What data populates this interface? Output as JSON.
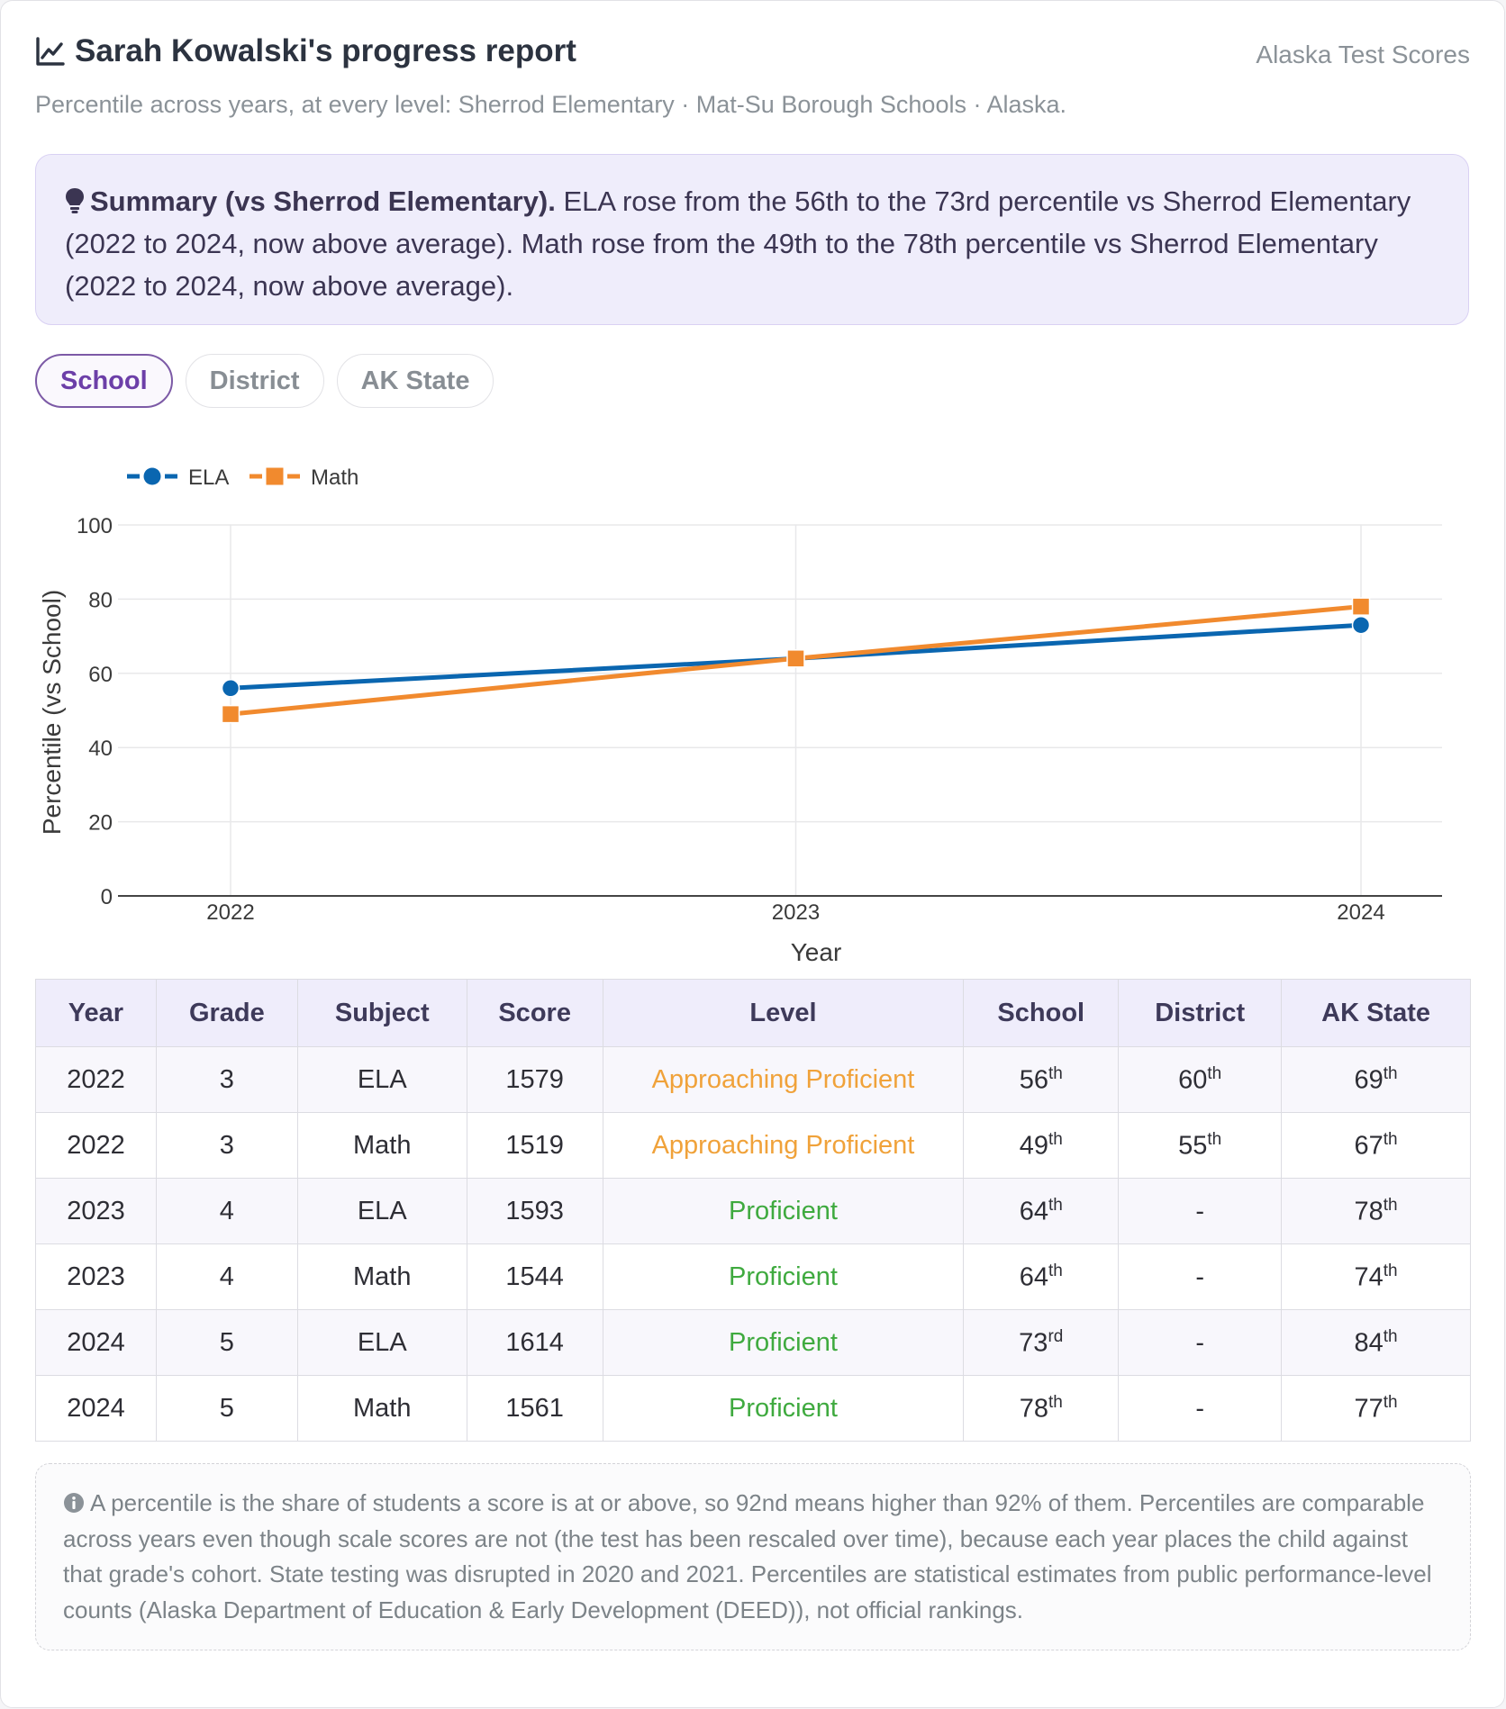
{
  "header": {
    "title": "Sarah Kowalski's progress report",
    "brand": "Alaska Test Scores",
    "subtitle": "Percentile across years, at every level: Sherrod Elementary · Mat-Su Borough Schools · Alaska."
  },
  "summary": {
    "lead": "Summary (vs Sherrod Elementary).",
    "text": " ELA rose from the 56th to the 73rd percentile vs Sherrod Elementary (2022 to 2024, now above average). Math rose from the 49th to the 78th percentile vs Sherrod Elementary (2022 to 2024, now above average)."
  },
  "tabs": [
    {
      "label": "School",
      "active": true
    },
    {
      "label": "District",
      "active": false
    },
    {
      "label": "AK State",
      "active": false
    }
  ],
  "colors": {
    "ela": "#0a66b0",
    "math": "#f18a2e",
    "approaching": "#f0a23a",
    "proficient": "#3faa3f"
  },
  "chart_data": {
    "type": "line",
    "x": [
      2022,
      2023,
      2024
    ],
    "x_tick_labels": [
      "2022",
      "2023",
      "2024"
    ],
    "series": [
      {
        "name": "ELA",
        "values": [
          56,
          64,
          73
        ],
        "marker": "circle"
      },
      {
        "name": "Math",
        "values": [
          49,
          64,
          78
        ],
        "marker": "square"
      }
    ],
    "xlabel": "Year",
    "ylabel": "Percentile (vs School)",
    "ylim": [
      0,
      100
    ],
    "y_ticks": [
      0,
      20,
      40,
      60,
      80,
      100
    ],
    "grid": true,
    "legend_position": "top-left"
  },
  "table": {
    "headers": [
      "Year",
      "Grade",
      "Subject",
      "Score",
      "Level",
      "School",
      "District",
      "AK State"
    ],
    "rows": [
      {
        "year": "2022",
        "grade": "3",
        "subject": "ELA",
        "score": "1579",
        "level": "Approaching Proficient",
        "level_kind": "approaching",
        "school": [
          "56",
          "th"
        ],
        "district": [
          "60",
          "th"
        ],
        "state": [
          "69",
          "th"
        ]
      },
      {
        "year": "2022",
        "grade": "3",
        "subject": "Math",
        "score": "1519",
        "level": "Approaching Proficient",
        "level_kind": "approaching",
        "school": [
          "49",
          "th"
        ],
        "district": [
          "55",
          "th"
        ],
        "state": [
          "67",
          "th"
        ]
      },
      {
        "year": "2023",
        "grade": "4",
        "subject": "ELA",
        "score": "1593",
        "level": "Proficient",
        "level_kind": "proficient",
        "school": [
          "64",
          "th"
        ],
        "district": [
          "-",
          ""
        ],
        "state": [
          "78",
          "th"
        ]
      },
      {
        "year": "2023",
        "grade": "4",
        "subject": "Math",
        "score": "1544",
        "level": "Proficient",
        "level_kind": "proficient",
        "school": [
          "64",
          "th"
        ],
        "district": [
          "-",
          ""
        ],
        "state": [
          "74",
          "th"
        ]
      },
      {
        "year": "2024",
        "grade": "5",
        "subject": "ELA",
        "score": "1614",
        "level": "Proficient",
        "level_kind": "proficient",
        "school": [
          "73",
          "rd"
        ],
        "district": [
          "-",
          ""
        ],
        "state": [
          "84",
          "th"
        ]
      },
      {
        "year": "2024",
        "grade": "5",
        "subject": "Math",
        "score": "1561",
        "level": "Proficient",
        "level_kind": "proficient",
        "school": [
          "78",
          "th"
        ],
        "district": [
          "-",
          ""
        ],
        "state": [
          "77",
          "th"
        ]
      }
    ]
  },
  "note": "A percentile is the share of students a score is at or above, so 92nd means higher than 92% of them. Percentiles are comparable across years even though scale scores are not (the test has been rescaled over time), because each year places the child against that grade's cohort. State testing was disrupted in 2020 and 2021. Percentiles are statistical estimates from public performance-level counts (Alaska Department of Education & Early Development (DEED)), not official rankings."
}
